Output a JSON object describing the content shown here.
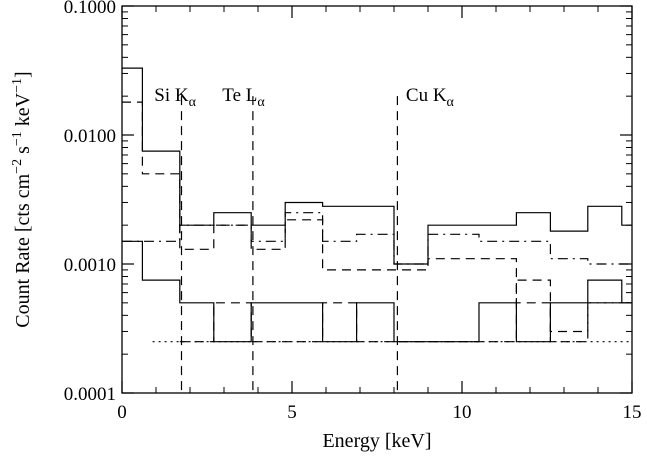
{
  "chart_data": {
    "type": "line",
    "xlabel": "Energy [keV]",
    "ylabel_main": "Count Rate [cts cm",
    "ylabel_tokens": [
      {
        "text": "Count Rate [cts cm",
        "shift": "base"
      },
      {
        "text": "−2",
        "shift": "super"
      },
      {
        "text": " s",
        "shift": "base"
      },
      {
        "text": "−1",
        "shift": "super"
      },
      {
        "text": " keV",
        "shift": "base"
      },
      {
        "text": "−1",
        "shift": "super"
      },
      {
        "text": "]",
        "shift": "base"
      }
    ],
    "xlim": [
      0,
      15
    ],
    "ylim": [
      0.0001,
      0.1
    ],
    "yscale": "log",
    "xticks": [
      0,
      5,
      10,
      15
    ],
    "xtick_labels": [
      "0",
      "5",
      "10",
      "15"
    ],
    "yticks": [
      0.0001,
      0.001,
      0.01,
      0.1
    ],
    "ytick_labels": [
      "0.0001",
      "0.0010",
      "0.0100",
      "0.1000"
    ],
    "grid": false,
    "series": [
      {
        "style": "solid",
        "x": [
          0,
          0.6,
          1.7,
          2.7,
          3.8,
          4.8,
          5.9,
          6.9,
          8.0,
          9.0,
          10.5,
          11.6,
          12.6,
          13.7,
          14.7
        ],
        "values": [
          0.033,
          0.0075,
          0.002,
          0.0025,
          0.002,
          0.003,
          0.0028,
          0.0028,
          0.001,
          0.002,
          0.002,
          0.0025,
          0.0018,
          0.0028,
          0.002
        ]
      },
      {
        "style": "dashed",
        "x": [
          0,
          0.6,
          1.7,
          2.7,
          3.8,
          4.8,
          5.9,
          6.9,
          8.0,
          9.0,
          10.5,
          11.6,
          12.6,
          13.7,
          14.7
        ],
        "values": [
          0.018,
          0.005,
          0.0013,
          0.002,
          0.0013,
          0.0022,
          0.0009,
          0.0009,
          0.0009,
          0.0011,
          0.0011,
          0.0005,
          0.0003,
          0.0005,
          0.0005
        ]
      },
      {
        "style": "dashdot",
        "x": [
          0,
          1.7,
          2.7,
          3.8,
          4.8,
          5.9,
          6.9,
          8.0,
          9.0,
          10.5,
          11.6,
          12.6,
          13.7,
          14.7
        ],
        "values": [
          0.0015,
          0.002,
          0.002,
          0.0015,
          0.0025,
          0.0015,
          0.0017,
          0.001,
          0.0017,
          0.0015,
          0.0015,
          0.0011,
          0.001,
          0.001
        ]
      },
      {
        "style": "dotted",
        "x": [
          0.9,
          1.7
        ],
        "values": [
          0.00025,
          0.00025
        ]
      },
      {
        "style": "solid",
        "x": [
          0,
          0.6,
          1.7,
          2.7,
          3.8,
          4.8,
          5.9,
          6.9,
          8.0,
          9.0,
          10.5,
          11.6,
          12.6,
          13.7,
          14.7
        ],
        "values": [
          0.0015,
          0.00075,
          0.0005,
          0.00025,
          0.0005,
          0.0005,
          0.00025,
          0.0005,
          0.00025,
          0.00025,
          0.0005,
          0.00025,
          0.0005,
          0.00075,
          0.0005
        ]
      },
      {
        "style": "dashed",
        "x": [
          1.7,
          2.7,
          3.8,
          4.8,
          5.9,
          6.9,
          8.0,
          9.0,
          10.5,
          11.6,
          12.6,
          13.7,
          14.7
        ],
        "values": [
          0.00025,
          0.0005,
          0.00025,
          0.00025,
          0.0005,
          0.00025,
          0.00025,
          0.00025,
          0.00025,
          0.00075,
          0.00025,
          0.0005,
          0.0005
        ]
      }
    ],
    "annotations": [
      {
        "label": "Si K",
        "sub": "α",
        "x": 1.75,
        "y_top": 0.02,
        "label_x": 0.95
      },
      {
        "label": "Te L",
        "sub": "α",
        "x": 3.85,
        "y_top": 0.02,
        "label_x": 2.95
      },
      {
        "label": "Cu K",
        "sub": "α",
        "x": 8.1,
        "y_top": 0.02,
        "label_x": 8.35
      }
    ]
  }
}
